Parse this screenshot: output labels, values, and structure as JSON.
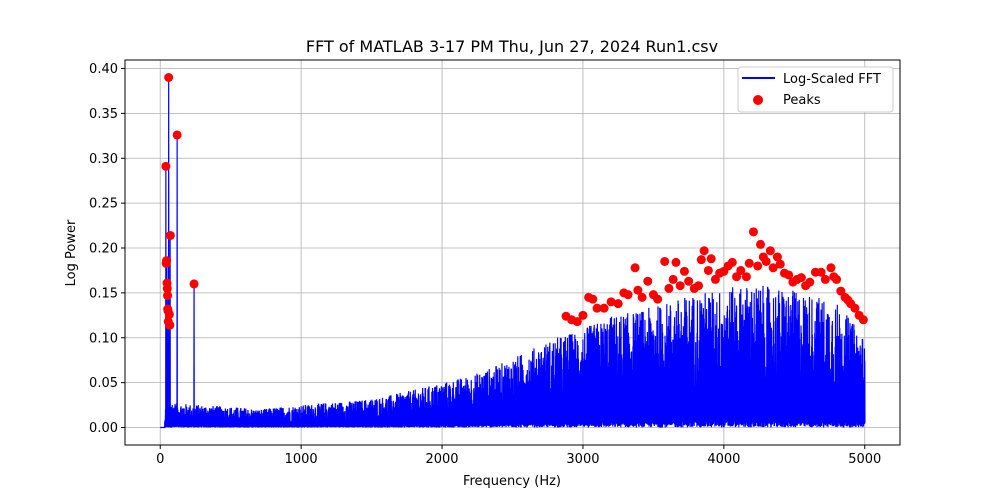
{
  "chart_data": {
    "type": "line",
    "title": "FFT of MATLAB 3-17 PM Thu, Jun 27, 2024 Run1.csv",
    "xlabel": "Frequency (Hz)",
    "ylabel": "Log Power",
    "xlim": [
      -250,
      5250
    ],
    "ylim": [
      -0.0195,
      0.4095
    ],
    "xticks": [
      0,
      1000,
      2000,
      3000,
      4000,
      5000
    ],
    "yticks": [
      0.0,
      0.05,
      0.1,
      0.15,
      0.2,
      0.25,
      0.3,
      0.35,
      0.4
    ],
    "xtick_labels": [
      "0",
      "1000",
      "2000",
      "3000",
      "4000",
      "5000"
    ],
    "ytick_labels": [
      "0.00",
      "0.05",
      "0.10",
      "0.15",
      "0.20",
      "0.25",
      "0.30",
      "0.35",
      "0.40"
    ],
    "grid": true,
    "legend_position": "top-right",
    "colors": {
      "line": "#0000ff",
      "peaks": "#ff0000"
    },
    "series": [
      {
        "name": "Log-Scaled FFT",
        "kind": "line",
        "x_range": [
          0,
          5000
        ],
        "envelope_x": [
          0,
          30,
          40,
          100,
          200,
          400,
          600,
          700,
          800,
          1000,
          1200,
          1400,
          1600,
          1800,
          2000,
          2200,
          2400,
          2600,
          2800,
          3000,
          3200,
          3400,
          3600,
          3800,
          4000,
          4200,
          4400,
          4600,
          4800,
          4900,
          5000
        ],
        "envelope_y": [
          0.0,
          0.0,
          0.03,
          0.028,
          0.026,
          0.024,
          0.022,
          0.02,
          0.022,
          0.025,
          0.028,
          0.03,
          0.035,
          0.042,
          0.05,
          0.058,
          0.07,
          0.085,
          0.1,
          0.11,
          0.125,
          0.13,
          0.14,
          0.15,
          0.155,
          0.16,
          0.155,
          0.15,
          0.14,
          0.12,
          0.1
        ],
        "spikes": [
          [
            40,
            0.29
          ],
          [
            47,
            0.185
          ],
          [
            50,
            0.155
          ],
          [
            55,
            0.13
          ],
          [
            60,
            0.39
          ],
          [
            70,
            0.214
          ],
          [
            120,
            0.326
          ],
          [
            240,
            0.16
          ]
        ]
      },
      {
        "name": "Peaks",
        "kind": "scatter",
        "points": [
          [
            40,
            0.291
          ],
          [
            42,
            0.183
          ],
          [
            45,
            0.186
          ],
          [
            48,
            0.161
          ],
          [
            50,
            0.155
          ],
          [
            52,
            0.147
          ],
          [
            53,
            0.132
          ],
          [
            55,
            0.13
          ],
          [
            57,
            0.118
          ],
          [
            60,
            0.39
          ],
          [
            65,
            0.126
          ],
          [
            68,
            0.114
          ],
          [
            72,
            0.214
          ],
          [
            120,
            0.326
          ],
          [
            240,
            0.16
          ],
          [
            2880,
            0.124
          ],
          [
            2920,
            0.12
          ],
          [
            2960,
            0.118
          ],
          [
            3000,
            0.125
          ],
          [
            3040,
            0.145
          ],
          [
            3070,
            0.143
          ],
          [
            3100,
            0.133
          ],
          [
            3150,
            0.133
          ],
          [
            3200,
            0.14
          ],
          [
            3250,
            0.138
          ],
          [
            3290,
            0.15
          ],
          [
            3320,
            0.148
          ],
          [
            3370,
            0.178
          ],
          [
            3390,
            0.153
          ],
          [
            3420,
            0.145
          ],
          [
            3460,
            0.163
          ],
          [
            3500,
            0.148
          ],
          [
            3530,
            0.143
          ],
          [
            3580,
            0.185
          ],
          [
            3610,
            0.155
          ],
          [
            3640,
            0.165
          ],
          [
            3660,
            0.184
          ],
          [
            3690,
            0.158
          ],
          [
            3720,
            0.174
          ],
          [
            3750,
            0.163
          ],
          [
            3790,
            0.155
          ],
          [
            3820,
            0.158
          ],
          [
            3840,
            0.187
          ],
          [
            3860,
            0.197
          ],
          [
            3890,
            0.175
          ],
          [
            3910,
            0.188
          ],
          [
            3940,
            0.165
          ],
          [
            3970,
            0.172
          ],
          [
            4000,
            0.174
          ],
          [
            4030,
            0.18
          ],
          [
            4060,
            0.184
          ],
          [
            4090,
            0.168
          ],
          [
            4120,
            0.175
          ],
          [
            4160,
            0.168
          ],
          [
            4180,
            0.183
          ],
          [
            4210,
            0.218
          ],
          [
            4240,
            0.18
          ],
          [
            4260,
            0.204
          ],
          [
            4280,
            0.19
          ],
          [
            4300,
            0.185
          ],
          [
            4330,
            0.197
          ],
          [
            4350,
            0.178
          ],
          [
            4380,
            0.19
          ],
          [
            4400,
            0.182
          ],
          [
            4430,
            0.172
          ],
          [
            4460,
            0.17
          ],
          [
            4490,
            0.162
          ],
          [
            4520,
            0.165
          ],
          [
            4550,
            0.167
          ],
          [
            4580,
            0.158
          ],
          [
            4610,
            0.162
          ],
          [
            4650,
            0.173
          ],
          [
            4690,
            0.173
          ],
          [
            4720,
            0.165
          ],
          [
            4760,
            0.178
          ],
          [
            4780,
            0.168
          ],
          [
            4800,
            0.165
          ],
          [
            4830,
            0.152
          ],
          [
            4860,
            0.145
          ],
          [
            4880,
            0.142
          ],
          [
            4900,
            0.138
          ],
          [
            4930,
            0.133
          ],
          [
            4960,
            0.125
          ],
          [
            4990,
            0.12
          ]
        ]
      }
    ]
  }
}
